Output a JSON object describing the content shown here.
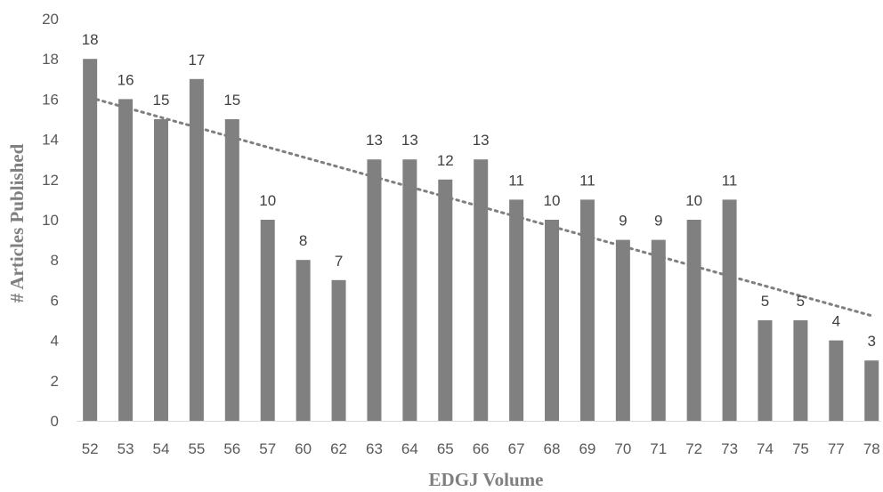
{
  "chart_data": {
    "type": "bar",
    "title": "",
    "xlabel": "EDGJ Volume",
    "ylabel": "# Articles Published",
    "categories": [
      "52",
      "53",
      "54",
      "55",
      "56",
      "57",
      "60",
      "62",
      "63",
      "64",
      "65",
      "66",
      "67",
      "68",
      "69",
      "70",
      "71",
      "72",
      "73",
      "74",
      "75",
      "77",
      "78"
    ],
    "values": [
      18,
      16,
      15,
      17,
      15,
      10,
      8,
      7,
      13,
      13,
      12,
      13,
      11,
      10,
      11,
      9,
      9,
      10,
      11,
      5,
      5,
      4,
      3
    ],
    "data_labels": [
      "18",
      "16",
      "15",
      "17",
      "15",
      "10",
      "8",
      "7",
      "13",
      "13",
      "12",
      "13",
      "11",
      "10",
      "11",
      "9",
      "9",
      "10",
      "11",
      "5",
      "5",
      "4",
      "3"
    ],
    "y_ticks": [
      "0",
      "2",
      "4",
      "6",
      "8",
      "10",
      "12",
      "14",
      "16",
      "18",
      "20"
    ],
    "ylim": [
      0,
      20
    ],
    "grid": false,
    "legend": "none",
    "trendline": {
      "type": "linear",
      "style": "dotted"
    },
    "colors": {
      "bar": "#808080",
      "trendline": "#7f7f7f",
      "baseline": "#d9d9d9"
    }
  }
}
